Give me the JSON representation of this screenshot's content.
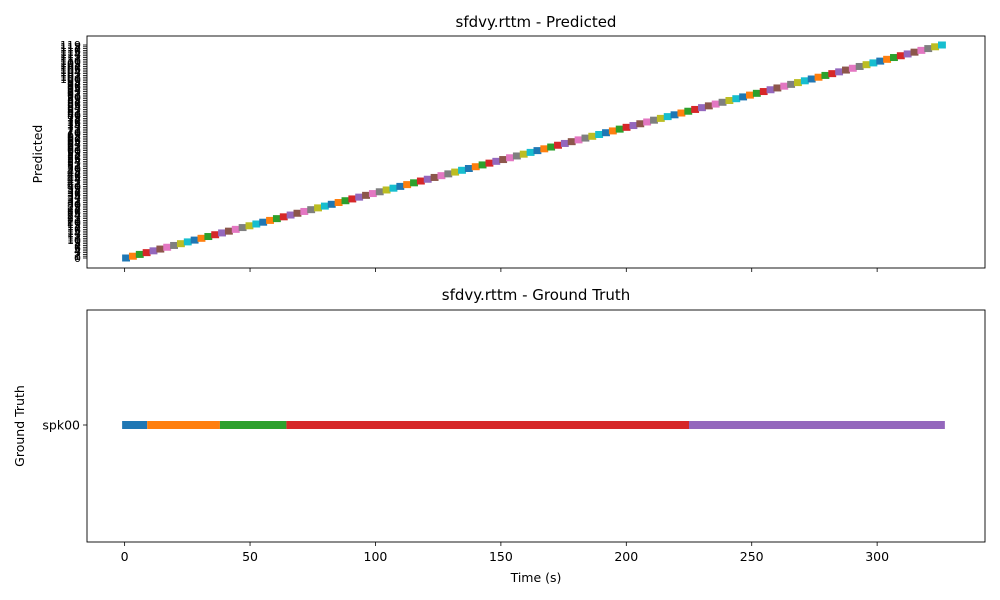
{
  "chart_data": [
    {
      "type": "timeline",
      "title": "sfdvy.rttm - Predicted",
      "ylabel": "Predicted",
      "xlabel": "",
      "xlim": [
        -15,
        343
      ],
      "x_ticks": [
        0,
        50,
        100,
        150,
        200,
        250,
        300
      ],
      "show_x_tick_labels": false,
      "num_speakers": 120,
      "segments_note": "one short segment per speaker, staircase from t=0 to t=327",
      "time_range": [
        -1,
        327
      ],
      "colors": [
        "#1f77b4",
        "#ff7f0e",
        "#2ca02c",
        "#d62728",
        "#9467bd",
        "#8c564b",
        "#e377c2",
        "#7f7f7f",
        "#bcbd22",
        "#17becf"
      ]
    },
    {
      "type": "timeline",
      "title": "sfdvy.rttm - Ground Truth",
      "ylabel": "Ground Truth",
      "xlabel": "Time (s)",
      "xlim": [
        -15,
        343
      ],
      "x_ticks": [
        0,
        50,
        100,
        150,
        200,
        250,
        300
      ],
      "show_x_tick_labels": true,
      "y_labels": [
        "spk00"
      ],
      "segments": [
        {
          "speaker": "spk00",
          "start": -1,
          "end": 9,
          "color": "#1f77b4"
        },
        {
          "speaker": "spk00",
          "start": 9,
          "end": 38,
          "color": "#ff7f0e"
        },
        {
          "speaker": "spk00",
          "start": 38,
          "end": 64.5,
          "color": "#2ca02c"
        },
        {
          "speaker": "spk00",
          "start": 64.5,
          "end": 225,
          "color": "#d62728"
        },
        {
          "speaker": "spk00",
          "start": 225,
          "end": 327,
          "color": "#9467bd"
        }
      ]
    }
  ]
}
